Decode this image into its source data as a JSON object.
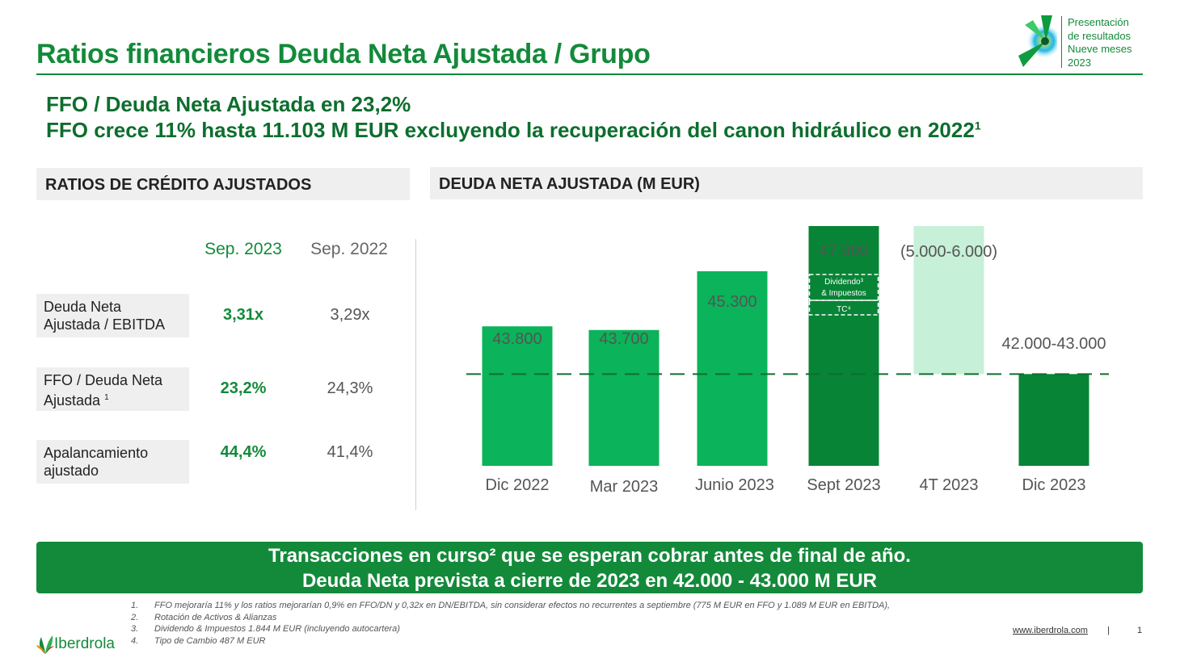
{
  "header": {
    "title": "Ratios financieros Deuda Neta Ajustada / Grupo",
    "badge_lines": [
      "Presentación",
      "de resultados",
      "Nueve meses",
      "2023"
    ]
  },
  "headlines": [
    "FFO / Deuda Neta Ajustada en 23,2%",
    "FFO crece 11% hasta 11.103 M EUR excluyendo la recuperación del canon hidráulico en 2022"
  ],
  "headline_sup": "1",
  "left_panel": {
    "title": "RATIOS DE CRÉDITO AJUSTADOS",
    "col_2023": "Sep. 2023",
    "col_2022": "Sep. 2022",
    "rows": [
      {
        "label_lines": [
          "Deuda Neta",
          "Ajustada / EBITDA"
        ],
        "sup": "",
        "v2023": "3,31x",
        "v2022": "3,29x"
      },
      {
        "label_lines": [
          "FFO / Deuda Neta",
          "Ajustada"
        ],
        "sup": "1",
        "v2023": "23,2%",
        "v2022": "24,3%"
      },
      {
        "label_lines": [
          "Apalancamiento",
          "ajustado"
        ],
        "sup": "",
        "v2023": "44,4%",
        "v2022": "41,4%"
      }
    ]
  },
  "right_panel": {
    "title": "DEUDA NETA AJUSTADA (M EUR)"
  },
  "chart_data": {
    "type": "bar",
    "title": "DEUDA NETA AJUSTADA (M EUR)",
    "categories": [
      "Dic 2022",
      "Mar 2023",
      "Junio 2023",
      "Sept 2023",
      "4T 2023",
      "Dic 2023"
    ],
    "values": [
      43800,
      43700,
      45300,
      47900,
      -5500,
      42500
    ],
    "labels": [
      "43.800",
      "43.700",
      "45.300",
      "47.900",
      "(5.000-6.000)",
      "42.000-43.000"
    ],
    "annotations": [
      "Dividendo³",
      "& Impuestos",
      "TC⁴"
    ],
    "reference_line": 42500,
    "colors": {
      "primary": "#0bb35a",
      "dark": "#078436",
      "light": "#c6f0d7",
      "dashed_line": "#0d6e2e"
    }
  },
  "callout": {
    "line1": "Transacciones en curso² que se esperan cobrar antes de final de año.",
    "line2": "Deuda Neta prevista a cierre de 2023 en 42.000 - 43.000 M EUR"
  },
  "footnotes": [
    {
      "num": "1.",
      "text": "FFO mejoraría 11% y los ratios mejorarían 0,9% en FFO/DN y 0,32x en DN/EBITDA, sin considerar efectos no recurrentes a septiembre (775 M EUR en FFO y 1.089 M EUR en EBITDA),"
    },
    {
      "num": "2.",
      "text": "Rotación de Activos & Alianzas"
    },
    {
      "num": "3.",
      "text": "Dividendo & Impuestos 1.844 M EUR (incluyendo autocartera)"
    },
    {
      "num": "4.",
      "text": "Tipo de Cambio 487 M EUR"
    }
  ],
  "footer": {
    "website": "www.iberdrola.com",
    "separator": "|",
    "page": "1",
    "brand": "Iberdrola"
  }
}
